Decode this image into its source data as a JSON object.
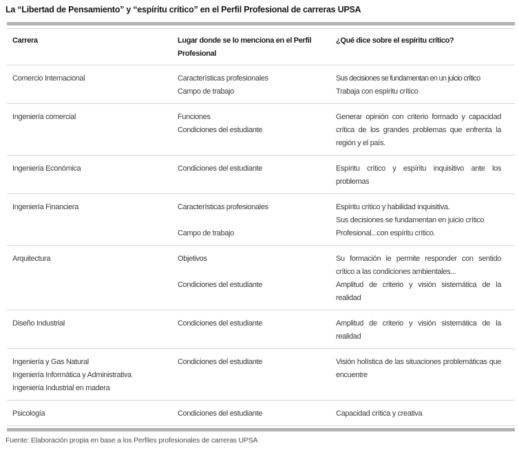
{
  "title": "La “Libertad de Pensamiento” y “espíritu crítico” en el Perfil Profesional de carreras UPSA",
  "table": {
    "headers": [
      "Carrera",
      "Lugar donde se lo menciona en el Perfil Profesional",
      "¿Qué dice sobre el espíritu crítico?"
    ],
    "rows": [
      {
        "carrera": [
          "Comercio Internacional"
        ],
        "lugar": [
          "Características profesionales",
          "Campo de trabajo"
        ],
        "dice": [
          "Sus decisiones se fundamentan en un juicio crítico",
          "Trabaja con espíritu crítico"
        ]
      },
      {
        "carrera": [
          "Ingeniería comercial"
        ],
        "lugar": [
          "Funciones",
          "Condiciones del estudiante"
        ],
        "dice": [
          "Generar opinión con criterio formado y capa­cidad crítica de los grandes problemas que enfrenta la región y el país."
        ]
      },
      {
        "carrera": [
          "Ingeniería Económica"
        ],
        "lugar": [
          "Condiciones del estudiante"
        ],
        "dice": [
          "Espíritu crítico y espíritu inquisitivo ante los problemas"
        ]
      },
      {
        "carrera": [
          "Ingeniería Financiera"
        ],
        "lugar": [
          "Características profesionales",
          "",
          "Campo de trabajo"
        ],
        "dice": [
          "Espíritu crítico y habilidad inquisitiva.",
          "Sus decisiones se fundamentan en juicio crítico",
          "Profesional...con espíritu crítico."
        ]
      },
      {
        "carrera": [
          "Arquitectura"
        ],
        "lugar": [
          "Objetivos",
          "",
          "Condiciones del estudiante"
        ],
        "dice": [
          "Su formación le permite responder con sen­tido crítico a las condiciones ambientales...",
          "Amplitud de criterio y visión sistemática de la realidad"
        ]
      },
      {
        "carrera": [
          "Diseño Industrial"
        ],
        "lugar": [
          "Condiciones del estudiante"
        ],
        "dice": [
          "Amplitud de criterio y visión sistemática de la realidad"
        ]
      },
      {
        "carrera": [
          "Ingeniería y Gas Natural",
          "Ingeniería Informática y Administrativa",
          "Ingeniería Industrial en madera"
        ],
        "lugar": [
          "Condiciones del estudiante"
        ],
        "dice": [
          "Visión holística de las situaciones problemáti­cas que encuentre"
        ]
      },
      {
        "carrera": [
          "Psicología"
        ],
        "lugar": [
          "Condiciones del estudiante"
        ],
        "dice": [
          "Capacidad crítica y creativa"
        ]
      }
    ]
  },
  "source": "Fuente: Elaboración propia en base a los Perfiles profesionales de carreras UPSA",
  "colors": {
    "rule_thick": "#b3b3b3",
    "rule_thin": "#d6d6d6",
    "heading_text": "#1a1a1a",
    "body_text": "#3a3a3a"
  }
}
